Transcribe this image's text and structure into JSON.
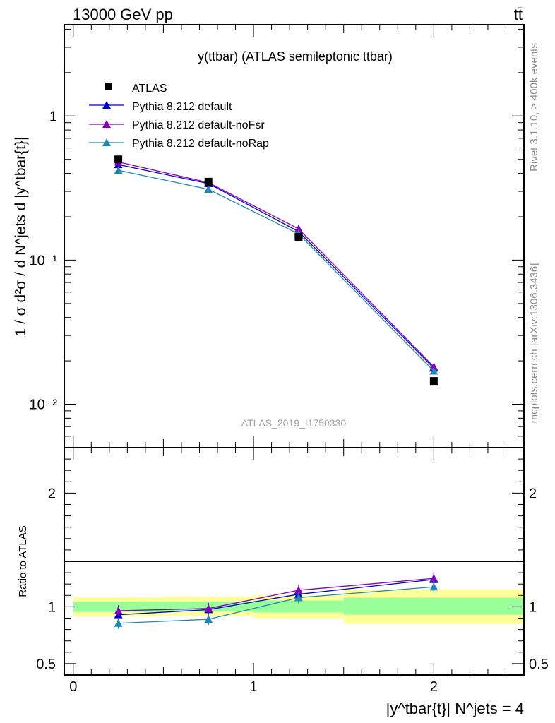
{
  "header": {
    "energy_label": "13000 GeV pp",
    "process_label": "tt̄"
  },
  "side_labels": {
    "rivet": "Rivet 3.1.10, ≥ 400k events",
    "mcplots": "mcplots.cern.ch [arXiv:1306.3436]"
  },
  "colors": {
    "atlas": "#000000",
    "default": "#0000cc",
    "noFsr": "#8800bb",
    "noRap": "#1e88b4",
    "band_inner": "#99ff99",
    "band_outer": "#ffff99"
  },
  "chart_data": [
    {
      "type": "line",
      "panel": "main",
      "title": "y(ttbar) (ATLAS semileptonic ttbar)",
      "watermark": "ATLAS_2019_I1750330",
      "ylabel": "1 / σ d²σ / d N^jets d |y^tbar{t}|",
      "yscale": "log",
      "ylim": [
        0.005,
        4.3
      ],
      "xlim": [
        -0.05,
        2.5
      ],
      "ytick_labels": [
        {
          "value": 1,
          "label": "1"
        },
        {
          "value": 0.1,
          "label": "10⁻¹"
        },
        {
          "value": 0.01,
          "label": "10⁻²"
        }
      ],
      "legend_position": "top-left",
      "x": [
        0.25,
        0.75,
        1.25,
        2.0
      ],
      "series": [
        {
          "name": "ATLAS",
          "marker": "square",
          "values": [
            0.5,
            0.35,
            0.145,
            0.0145
          ]
        },
        {
          "name": "Pythia 8.212 default",
          "marker": "triangle",
          "values": [
            0.46,
            0.34,
            0.158,
            0.0178
          ]
        },
        {
          "name": "Pythia 8.212 default-noFsr",
          "marker": "triangle",
          "values": [
            0.48,
            0.345,
            0.165,
            0.0182
          ]
        },
        {
          "name": "Pythia 8.212 default-noRap",
          "marker": "triangle",
          "values": [
            0.42,
            0.31,
            0.152,
            0.017
          ]
        }
      ]
    },
    {
      "type": "line",
      "panel": "ratio",
      "ylabel": "Ratio to ATLAS",
      "xlabel": "|y^tbar{t}| N^jets = 4",
      "ylim": [
        0.4,
        2.4
      ],
      "xlim": [
        -0.05,
        2.5
      ],
      "xtick_labels": [
        {
          "value": 0,
          "label": "0"
        },
        {
          "value": 1,
          "label": "1"
        },
        {
          "value": 2,
          "label": "2"
        }
      ],
      "ytick_labels": [
        {
          "value": 0.5,
          "label": "0.5"
        },
        {
          "value": 1,
          "label": "1"
        },
        {
          "value": 2,
          "label": "2"
        }
      ],
      "x": [
        0.25,
        0.75,
        1.25,
        2.0
      ],
      "bins": [
        [
          0,
          0.5
        ],
        [
          0.5,
          1.0
        ],
        [
          1.0,
          1.5
        ],
        [
          1.5,
          2.5
        ]
      ],
      "band_inner": [
        [
          0.955,
          1.045
        ],
        [
          0.96,
          1.045
        ],
        [
          0.95,
          1.055
        ],
        [
          0.93,
          1.08
        ]
      ],
      "band_outer": [
        [
          0.915,
          1.085
        ],
        [
          0.92,
          1.09
        ],
        [
          0.9,
          1.1
        ],
        [
          0.85,
          1.15
        ]
      ],
      "series": [
        {
          "name": "Pythia 8.212 default",
          "values": [
            0.93,
            0.975,
            1.11,
            1.24
          ]
        },
        {
          "name": "Pythia 8.212 default-noFsr",
          "values": [
            0.965,
            0.985,
            1.145,
            1.25
          ]
        },
        {
          "name": "Pythia 8.212 default-noRap",
          "values": [
            0.855,
            0.89,
            1.08,
            1.175
          ]
        }
      ]
    }
  ]
}
